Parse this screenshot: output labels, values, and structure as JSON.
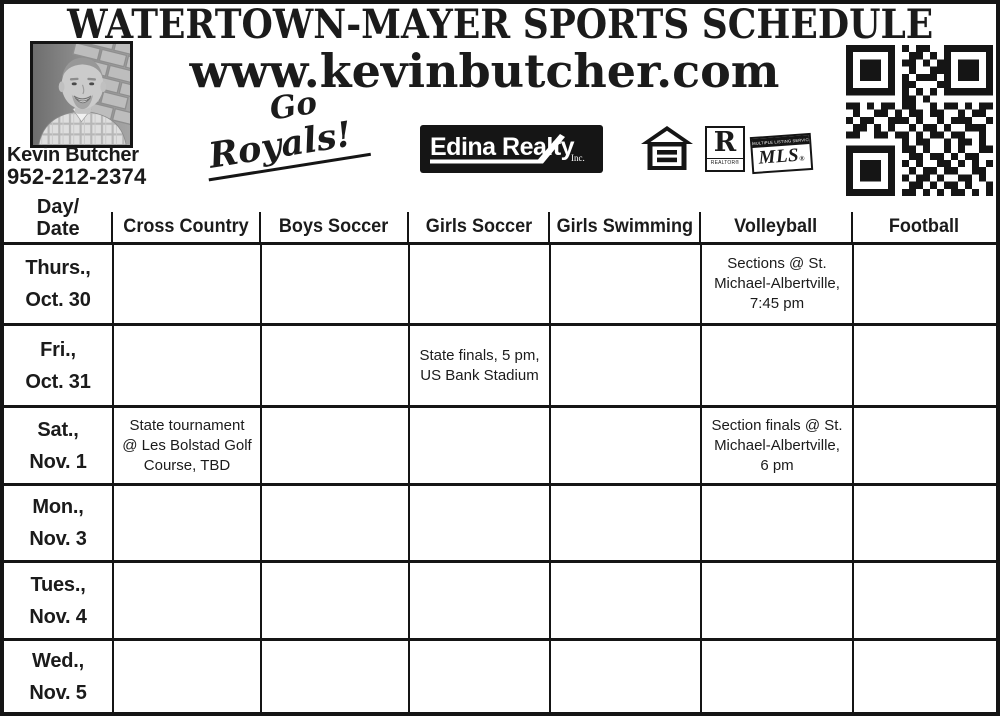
{
  "page": {
    "title": "WATERTOWN-MAYER SPORTS SCHEDULE"
  },
  "agent": {
    "name": "Kevin Butcher",
    "phone": "952-212-2374",
    "website": "www.kevinbutcher.com"
  },
  "slogan": {
    "line1": "Go",
    "line2": "Royals!"
  },
  "branding": {
    "edina_realty": {
      "name": "Edina Realty",
      "suffix": "Inc."
    },
    "realtor": {
      "letter": "R",
      "label": "REALTOR®"
    },
    "mls": {
      "small_text": "MULTIPLE LISTING SERVICE",
      "label": "MLS",
      "reg": "®"
    },
    "qr_pattern": [
      "111111101011001111111",
      "100000100110101000001",
      "101110101101011011101",
      "101110100100111011101",
      "101110101011101011101",
      "100000101100011000001",
      "111111101010101111111",
      "000000001101000000000",
      "110101101100101101011",
      "010011010110110010110",
      "101100111010010111001",
      "011010100101101001110",
      "110011011010110110010",
      "000000001011001011010",
      "111111101101001010011",
      "100000100110110101100",
      "101110101010011010101",
      "101110100101101100110",
      "101110101011010011010",
      "100000100110101101001",
      "111111101101010110101"
    ]
  },
  "schedule": {
    "day_date_header": [
      "Day/",
      "Date"
    ],
    "columns": [
      "Cross Country",
      "Boys Soccer",
      "Girls Soccer",
      "Girls Swimming",
      "Volleyball",
      "Football"
    ],
    "rows": [
      {
        "day": "Thurs.,",
        "date": "Oct. 30",
        "cells": [
          [],
          [],
          [],
          [],
          [
            "Sections @ St.",
            "Michael-Albertville,",
            "7:45 pm"
          ],
          []
        ]
      },
      {
        "day": "Fri.,",
        "date": "Oct. 31",
        "cells": [
          [],
          [],
          [
            "State finals, 5 pm,",
            "US Bank Stadium"
          ],
          [],
          [],
          []
        ]
      },
      {
        "day": "Sat.,",
        "date": "Nov. 1",
        "cells": [
          [
            "State tournament",
            "@ Les Bolstad Golf",
            "Course, TBD"
          ],
          [],
          [],
          [],
          [
            "Section finals @ St.",
            "Michael-Albertville,",
            "6 pm"
          ],
          []
        ]
      },
      {
        "day": "Mon.,",
        "date": "Nov. 3",
        "cells": [
          [],
          [],
          [],
          [],
          [],
          []
        ]
      },
      {
        "day": "Tues.,",
        "date": "Nov. 4",
        "cells": [
          [],
          [],
          [],
          [],
          [],
          []
        ]
      },
      {
        "day": "Wed.,",
        "date": "Nov. 5",
        "cells": [
          [],
          [],
          [],
          [],
          [],
          []
        ]
      }
    ]
  },
  "colors": {
    "ink": "#1b1b1b",
    "paper": "#ffffff"
  }
}
